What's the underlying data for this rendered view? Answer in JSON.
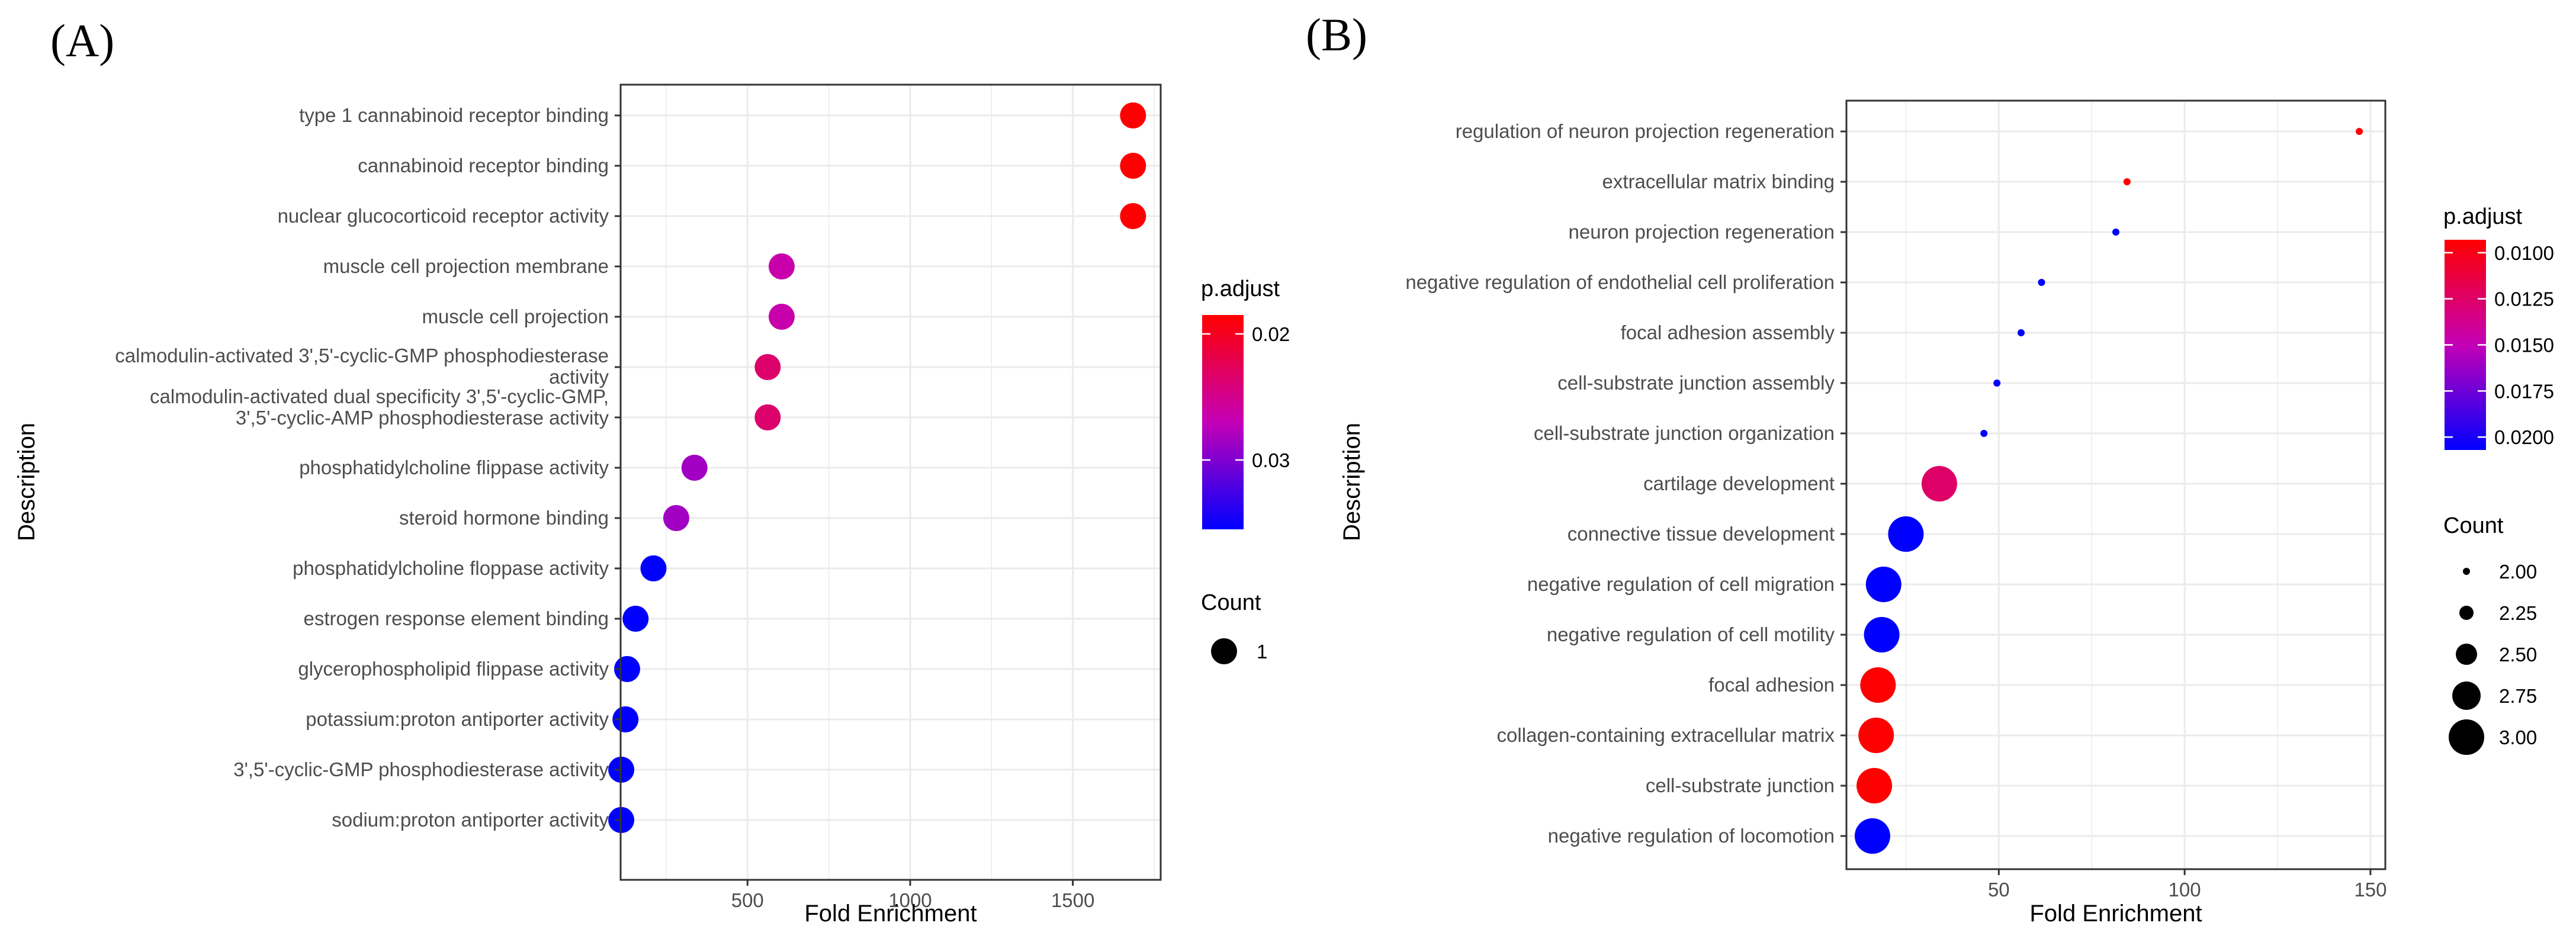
{
  "colors": {
    "low": "#0000ff",
    "high": "#ff0000",
    "grid": "#ebebeb",
    "border": "#333333",
    "background": "#ffffff"
  },
  "chart_data": [
    {
      "panel_label": "(A)",
      "type": "scatter",
      "xlabel": "Fold Enrichment",
      "ylabel": "Description",
      "xlim": [
        110,
        1770
      ],
      "xticks": [
        500,
        1000,
        1500
      ],
      "tick_labels": [
        "500",
        "1000",
        "1500"
      ],
      "color_legend": {
        "title": "p.adjust",
        "range": [
          0.0185,
          0.0355
        ],
        "reversed": true,
        "ticks": [
          0.02,
          0.03
        ],
        "tick_labels": [
          "0.02",
          "0.03"
        ]
      },
      "size_legend": {
        "title": "Count",
        "values": [
          1
        ],
        "labels": [
          "1"
        ]
      },
      "points": [
        {
          "label": "type 1 cannabinoid receptor binding",
          "x": 1685,
          "p_adjust": 0.0185,
          "count": 1
        },
        {
          "label": "cannabinoid receptor binding",
          "x": 1685,
          "p_adjust": 0.0185,
          "count": 1
        },
        {
          "label": "nuclear glucocorticoid receptor activity",
          "x": 1685,
          "p_adjust": 0.0185,
          "count": 1
        },
        {
          "label": "muscle cell projection membrane",
          "x": 605,
          "p_adjust": 0.0265,
          "count": 1
        },
        {
          "label": "muscle cell projection",
          "x": 605,
          "p_adjust": 0.0265,
          "count": 1
        },
        {
          "label": "calmodulin-activated 3',5'-cyclic-GMP phosphodiesterase activity",
          "x": 562,
          "p_adjust": 0.0235,
          "count": 1
        },
        {
          "label": "calmodulin-activated dual specificity 3',5'-cyclic-GMP, 3',5'-cyclic-AMP phosphodiesterase activity",
          "x": 562,
          "p_adjust": 0.0235,
          "count": 1
        },
        {
          "label": "phosphatidylcholine flippase activity",
          "x": 337,
          "p_adjust": 0.0285,
          "count": 1
        },
        {
          "label": "steroid hormone binding",
          "x": 281,
          "p_adjust": 0.0285,
          "count": 1
        },
        {
          "label": "phosphatidylcholine floppase activity",
          "x": 211,
          "p_adjust": 0.0355,
          "count": 1
        },
        {
          "label": "estrogen response element binding",
          "x": 156,
          "p_adjust": 0.0355,
          "count": 1
        },
        {
          "label": "glycerophospholipid flippase activity",
          "x": 130,
          "p_adjust": 0.0355,
          "count": 1
        },
        {
          "label": "potassium:proton antiporter activity",
          "x": 125,
          "p_adjust": 0.0355,
          "count": 1
        },
        {
          "label": "3',5'-cyclic-GMP phosphodiesterase activity",
          "x": 112,
          "p_adjust": 0.0355,
          "count": 1
        },
        {
          "label": "sodium:proton antiporter activity",
          "x": 112,
          "p_adjust": 0.0355,
          "count": 1
        }
      ]
    },
    {
      "panel_label": "(B)",
      "type": "scatter",
      "xlabel": "Fold Enrichment",
      "ylabel": "Description",
      "xlim": [
        9,
        154
      ],
      "xticks": [
        50,
        100,
        150
      ],
      "tick_labels": [
        "50",
        "100",
        "150"
      ],
      "color_legend": {
        "title": "p.adjust",
        "range": [
          0.0093,
          0.0207
        ],
        "reversed": true,
        "ticks": [
          0.01,
          0.0125,
          0.015,
          0.0175,
          0.02
        ],
        "tick_labels": [
          "0.0100",
          "0.0125",
          "0.0150",
          "0.0175",
          "0.0200"
        ]
      },
      "size_legend": {
        "title": "Count",
        "values": [
          2.0,
          2.25,
          2.5,
          2.75,
          3.0
        ],
        "labels": [
          "2.00",
          "2.25",
          "2.50",
          "2.75",
          "3.00"
        ]
      },
      "points": [
        {
          "label": "regulation of neuron projection regeneration",
          "x": 147,
          "p_adjust": 0.0093,
          "count": 2
        },
        {
          "label": "extracellular matrix binding",
          "x": 84.5,
          "p_adjust": 0.0093,
          "count": 2
        },
        {
          "label": "neuron projection regeneration",
          "x": 81.5,
          "p_adjust": 0.0207,
          "count": 2
        },
        {
          "label": "negative regulation of endothelial cell proliferation",
          "x": 61.5,
          "p_adjust": 0.0207,
          "count": 2
        },
        {
          "label": "focal adhesion assembly",
          "x": 56,
          "p_adjust": 0.0207,
          "count": 2
        },
        {
          "label": "cell-substrate junction assembly",
          "x": 49.5,
          "p_adjust": 0.0207,
          "count": 2
        },
        {
          "label": "cell-substrate junction organization",
          "x": 46,
          "p_adjust": 0.0207,
          "count": 2
        },
        {
          "label": "cartilage development",
          "x": 34,
          "p_adjust": 0.0125,
          "count": 3
        },
        {
          "label": "connective tissue development",
          "x": 25,
          "p_adjust": 0.0207,
          "count": 3
        },
        {
          "label": "negative regulation of cell migration",
          "x": 19,
          "p_adjust": 0.0207,
          "count": 3
        },
        {
          "label": "negative regulation of cell motility",
          "x": 18.5,
          "p_adjust": 0.0207,
          "count": 3
        },
        {
          "label": "focal adhesion",
          "x": 17.5,
          "p_adjust": 0.0093,
          "count": 3
        },
        {
          "label": "collagen-containing extracellular matrix",
          "x": 17,
          "p_adjust": 0.0093,
          "count": 3
        },
        {
          "label": "cell-substrate junction",
          "x": 16.5,
          "p_adjust": 0.0093,
          "count": 3
        },
        {
          "label": "negative regulation of locomotion",
          "x": 16,
          "p_adjust": 0.0207,
          "count": 3
        }
      ]
    }
  ]
}
